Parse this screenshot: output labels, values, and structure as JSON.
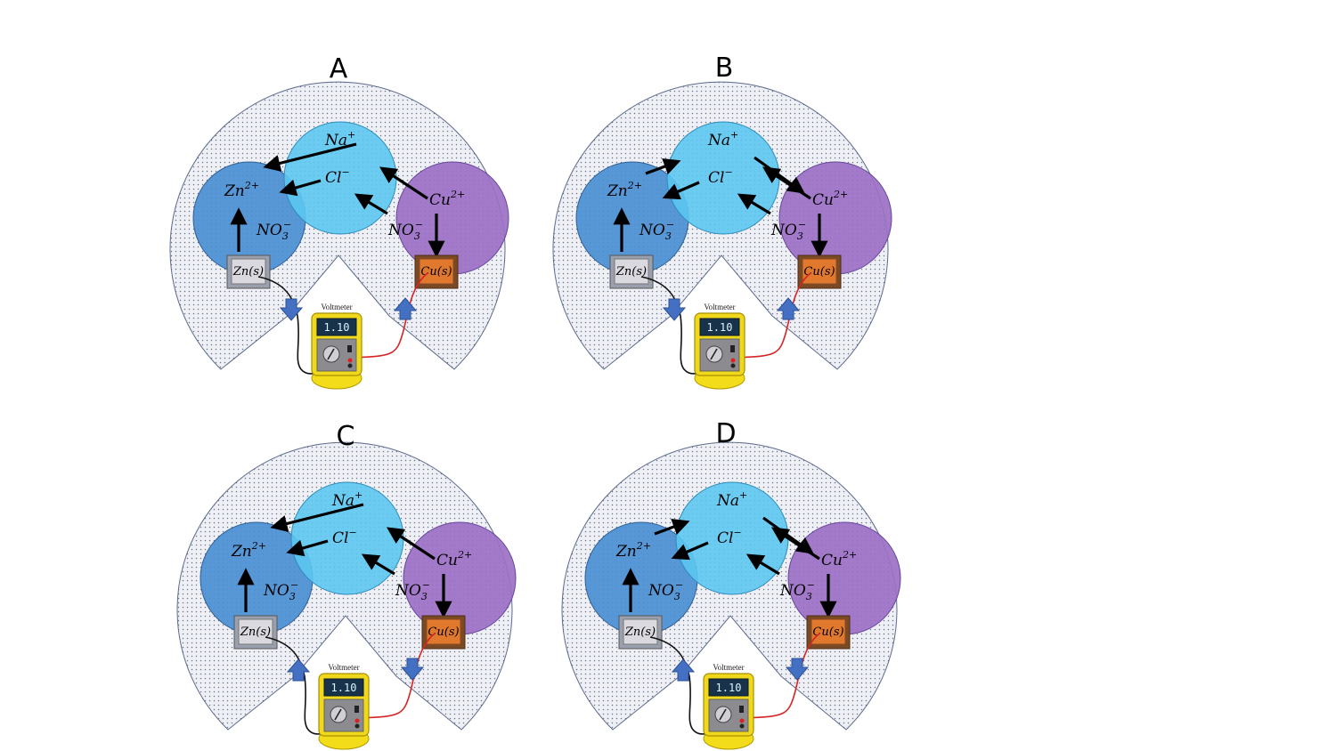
{
  "colors": {
    "shell_fill": "#eef0f6",
    "shell_stroke": "#5d6a8c",
    "zn_cell": "#4a8fd2",
    "salt_bridge": "#5cc6f0",
    "cu_cell": "#9c70c4",
    "zn_electrode": "#d9d9df",
    "cu_electrode": "#e0782e",
    "voltmeter_body": "#f0d81c",
    "voltmeter_screen": "#17324a",
    "wire_black": "#111111",
    "wire_red": "#d62424",
    "flow_arrow": "#4470c4"
  },
  "panels": [
    {
      "label": "A",
      "ions": {
        "na": "Na",
        "na_charge": "+",
        "cl": "Cl",
        "cl_charge": "−",
        "zn": "Zn",
        "zn_charge": "2+",
        "cu": "Cu",
        "cu_charge": "2+",
        "no3_left": "NO",
        "no3_left_sub": "3",
        "no3_left_charge": "−",
        "no3_right": "NO",
        "no3_right_sub": "3",
        "no3_right_charge": "−"
      },
      "electrodes": {
        "zn": "Zn(s)",
        "cu": "Cu(s)"
      },
      "voltmeter": {
        "title": "Voltmeter",
        "reading": "1.10"
      },
      "na_direction": "to-zn",
      "electron_flow": "zn-to-cu"
    },
    {
      "label": "B",
      "ions": {
        "na": "Na",
        "na_charge": "+",
        "cl": "Cl",
        "cl_charge": "−",
        "zn": "Zn",
        "zn_charge": "2+",
        "cu": "Cu",
        "cu_charge": "2+",
        "no3_left": "NO",
        "no3_left_sub": "3",
        "no3_left_charge": "−",
        "no3_right": "NO",
        "no3_right_sub": "3",
        "no3_right_charge": "−"
      },
      "electrodes": {
        "zn": "Zn(s)",
        "cu": "Cu(s)"
      },
      "voltmeter": {
        "title": "Voltmeter",
        "reading": "1.10"
      },
      "na_direction": "to-cu",
      "electron_flow": "zn-to-cu"
    },
    {
      "label": "C",
      "ions": {
        "na": "Na",
        "na_charge": "+",
        "cl": "Cl",
        "cl_charge": "−",
        "zn": "Zn",
        "zn_charge": "2+",
        "cu": "Cu",
        "cu_charge": "2+",
        "no3_left": "NO",
        "no3_left_sub": "3",
        "no3_left_charge": "−",
        "no3_right": "NO",
        "no3_right_sub": "3",
        "no3_right_charge": "−"
      },
      "electrodes": {
        "zn": "Zn(s)",
        "cu": "Cu(s)"
      },
      "voltmeter": {
        "title": "Voltmeter",
        "reading": "1.10"
      },
      "na_direction": "to-zn",
      "electron_flow": "cu-to-zn"
    },
    {
      "label": "D",
      "ions": {
        "na": "Na",
        "na_charge": "+",
        "cl": "Cl",
        "cl_charge": "−",
        "zn": "Zn",
        "zn_charge": "2+",
        "cu": "Cu",
        "cu_charge": "2+",
        "no3_left": "NO",
        "no3_left_sub": "3",
        "no3_left_charge": "−",
        "no3_right": "NO",
        "no3_right_sub": "3",
        "no3_right_charge": "−"
      },
      "electrodes": {
        "zn": "Zn(s)",
        "cu": "Cu(s)"
      },
      "voltmeter": {
        "title": "Voltmeter",
        "reading": "1.10"
      },
      "na_direction": "to-cu",
      "electron_flow": "cu-to-zn"
    }
  ]
}
